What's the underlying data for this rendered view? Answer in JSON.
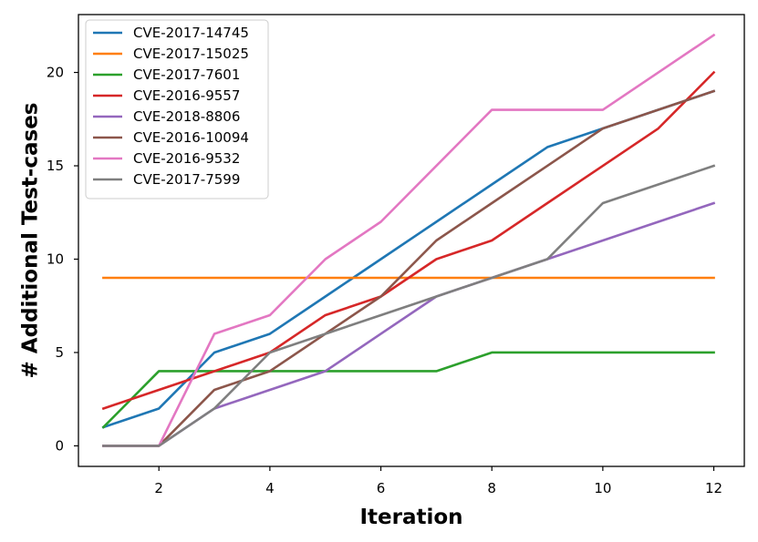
{
  "chart_data": {
    "type": "line",
    "title": "",
    "xlabel": "Iteration",
    "ylabel": "# Additional Test-cases",
    "xlim": [
      0.55,
      12.55
    ],
    "ylim": [
      -1.1,
      23.1
    ],
    "xticks": [
      2,
      4,
      6,
      8,
      10,
      12
    ],
    "yticks": [
      0,
      5,
      10,
      15,
      20
    ],
    "xtick_labels": [
      "2",
      "4",
      "6",
      "8",
      "10",
      "12"
    ],
    "ytick_labels": [
      "0",
      "5",
      "10",
      "15",
      "20"
    ],
    "grid": false,
    "legend_position": "top-left",
    "x": [
      1,
      2,
      3,
      4,
      5,
      6,
      7,
      8,
      9,
      10,
      11,
      12
    ],
    "series": [
      {
        "name": "CVE-2017-14745",
        "color": "#1f77b4",
        "values": [
          1,
          2,
          5,
          6,
          8,
          10,
          12,
          14,
          16,
          17,
          18,
          19
        ]
      },
      {
        "name": "CVE-2017-15025",
        "color": "#ff7f0e",
        "values": [
          9,
          9,
          9,
          9,
          9,
          9,
          9,
          9,
          9,
          9,
          9,
          9
        ]
      },
      {
        "name": "CVE-2017-7601",
        "color": "#2ca02c",
        "values": [
          1,
          4,
          4,
          4,
          4,
          4,
          4,
          5,
          5,
          5,
          5,
          5
        ]
      },
      {
        "name": "CVE-2016-9557",
        "color": "#d62728",
        "values": [
          2,
          3,
          4,
          5,
          7,
          8,
          10,
          11,
          13,
          15,
          17,
          20
        ]
      },
      {
        "name": "CVE-2018-8806",
        "color": "#9467bd",
        "values": [
          0,
          0,
          2,
          3,
          4,
          6,
          8,
          9,
          10,
          11,
          12,
          13
        ]
      },
      {
        "name": "CVE-2016-10094",
        "color": "#8c564b",
        "values": [
          0,
          0,
          3,
          4,
          6,
          8,
          11,
          13,
          15,
          17,
          18,
          19
        ]
      },
      {
        "name": "CVE-2016-9532",
        "color": "#e377c2",
        "values": [
          0,
          0,
          6,
          7,
          10,
          12,
          15,
          18,
          18,
          18,
          20,
          22
        ]
      },
      {
        "name": "CVE-2017-7599",
        "color": "#7f7f7f",
        "values": [
          0,
          0,
          2,
          5,
          6,
          7,
          8,
          9,
          10,
          13,
          14,
          15
        ]
      }
    ]
  }
}
